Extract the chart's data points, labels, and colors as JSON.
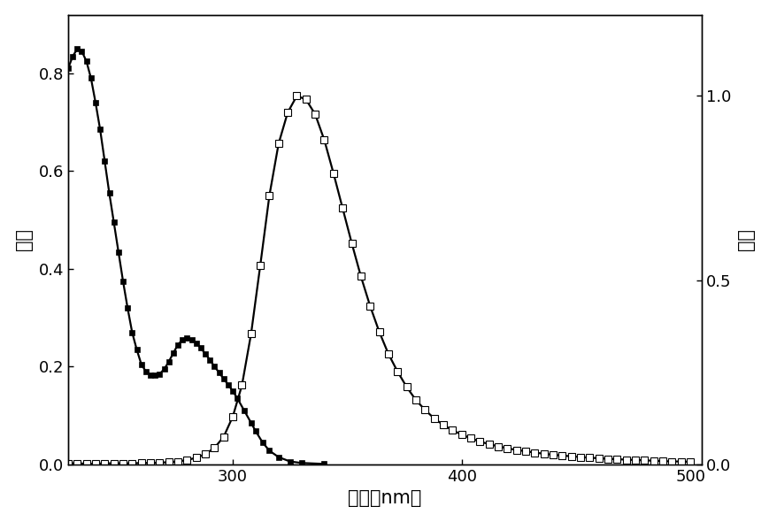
{
  "xlabel": "波长（nm）",
  "ylabel_left": "强度",
  "ylabel_right": "强度",
  "xlim": [
    228,
    505
  ],
  "ylim_left": [
    0.0,
    0.92
  ],
  "ylim_right": [
    0.0,
    1.22
  ],
  "xticks": [
    300,
    400,
    500
  ],
  "yticks_left": [
    0.0,
    0.2,
    0.4,
    0.6,
    0.8
  ],
  "yticks_right": [
    0.0,
    0.5,
    1.0
  ],
  "absorption_x": [
    228,
    230,
    232,
    234,
    236,
    238,
    240,
    242,
    244,
    246,
    248,
    250,
    252,
    254,
    256,
    258,
    260,
    262,
    264,
    266,
    268,
    270,
    272,
    274,
    276,
    278,
    280,
    282,
    284,
    286,
    288,
    290,
    292,
    294,
    296,
    298,
    300,
    302,
    305,
    308,
    310,
    313,
    316,
    320,
    325,
    330,
    340
  ],
  "absorption_y": [
    0.81,
    0.835,
    0.85,
    0.845,
    0.825,
    0.79,
    0.74,
    0.685,
    0.62,
    0.555,
    0.495,
    0.435,
    0.375,
    0.32,
    0.27,
    0.235,
    0.205,
    0.19,
    0.183,
    0.183,
    0.185,
    0.195,
    0.21,
    0.228,
    0.245,
    0.255,
    0.258,
    0.255,
    0.248,
    0.238,
    0.226,
    0.214,
    0.2,
    0.188,
    0.175,
    0.163,
    0.15,
    0.135,
    0.11,
    0.085,
    0.068,
    0.045,
    0.028,
    0.015,
    0.006,
    0.003,
    0.001
  ],
  "emission_x": [
    228,
    232,
    236,
    240,
    244,
    248,
    252,
    256,
    260,
    264,
    268,
    272,
    276,
    280,
    284,
    288,
    292,
    296,
    300,
    304,
    308,
    312,
    316,
    320,
    324,
    328,
    332,
    336,
    340,
    344,
    348,
    352,
    356,
    360,
    364,
    368,
    372,
    376,
    380,
    384,
    388,
    392,
    396,
    400,
    404,
    408,
    412,
    416,
    420,
    424,
    428,
    432,
    436,
    440,
    444,
    448,
    452,
    456,
    460,
    464,
    468,
    472,
    476,
    480,
    484,
    488,
    492,
    496,
    500
  ],
  "emission_y": [
    0.003,
    0.003,
    0.002,
    0.002,
    0.003,
    0.003,
    0.003,
    0.003,
    0.004,
    0.004,
    0.005,
    0.006,
    0.008,
    0.012,
    0.018,
    0.028,
    0.045,
    0.075,
    0.13,
    0.215,
    0.355,
    0.54,
    0.73,
    0.87,
    0.955,
    1.0,
    0.99,
    0.95,
    0.88,
    0.79,
    0.695,
    0.6,
    0.51,
    0.43,
    0.36,
    0.3,
    0.252,
    0.21,
    0.175,
    0.148,
    0.125,
    0.107,
    0.093,
    0.081,
    0.071,
    0.062,
    0.055,
    0.049,
    0.044,
    0.039,
    0.036,
    0.032,
    0.029,
    0.026,
    0.024,
    0.022,
    0.02,
    0.018,
    0.017,
    0.015,
    0.014,
    0.013,
    0.012,
    0.011,
    0.01,
    0.009,
    0.008,
    0.008,
    0.007
  ],
  "line_color": "#000000",
  "bg_color": "#ffffff",
  "marker_size_filled": 5,
  "marker_size_open": 6,
  "linewidth": 1.6,
  "font_size_label": 15,
  "font_size_tick": 13
}
